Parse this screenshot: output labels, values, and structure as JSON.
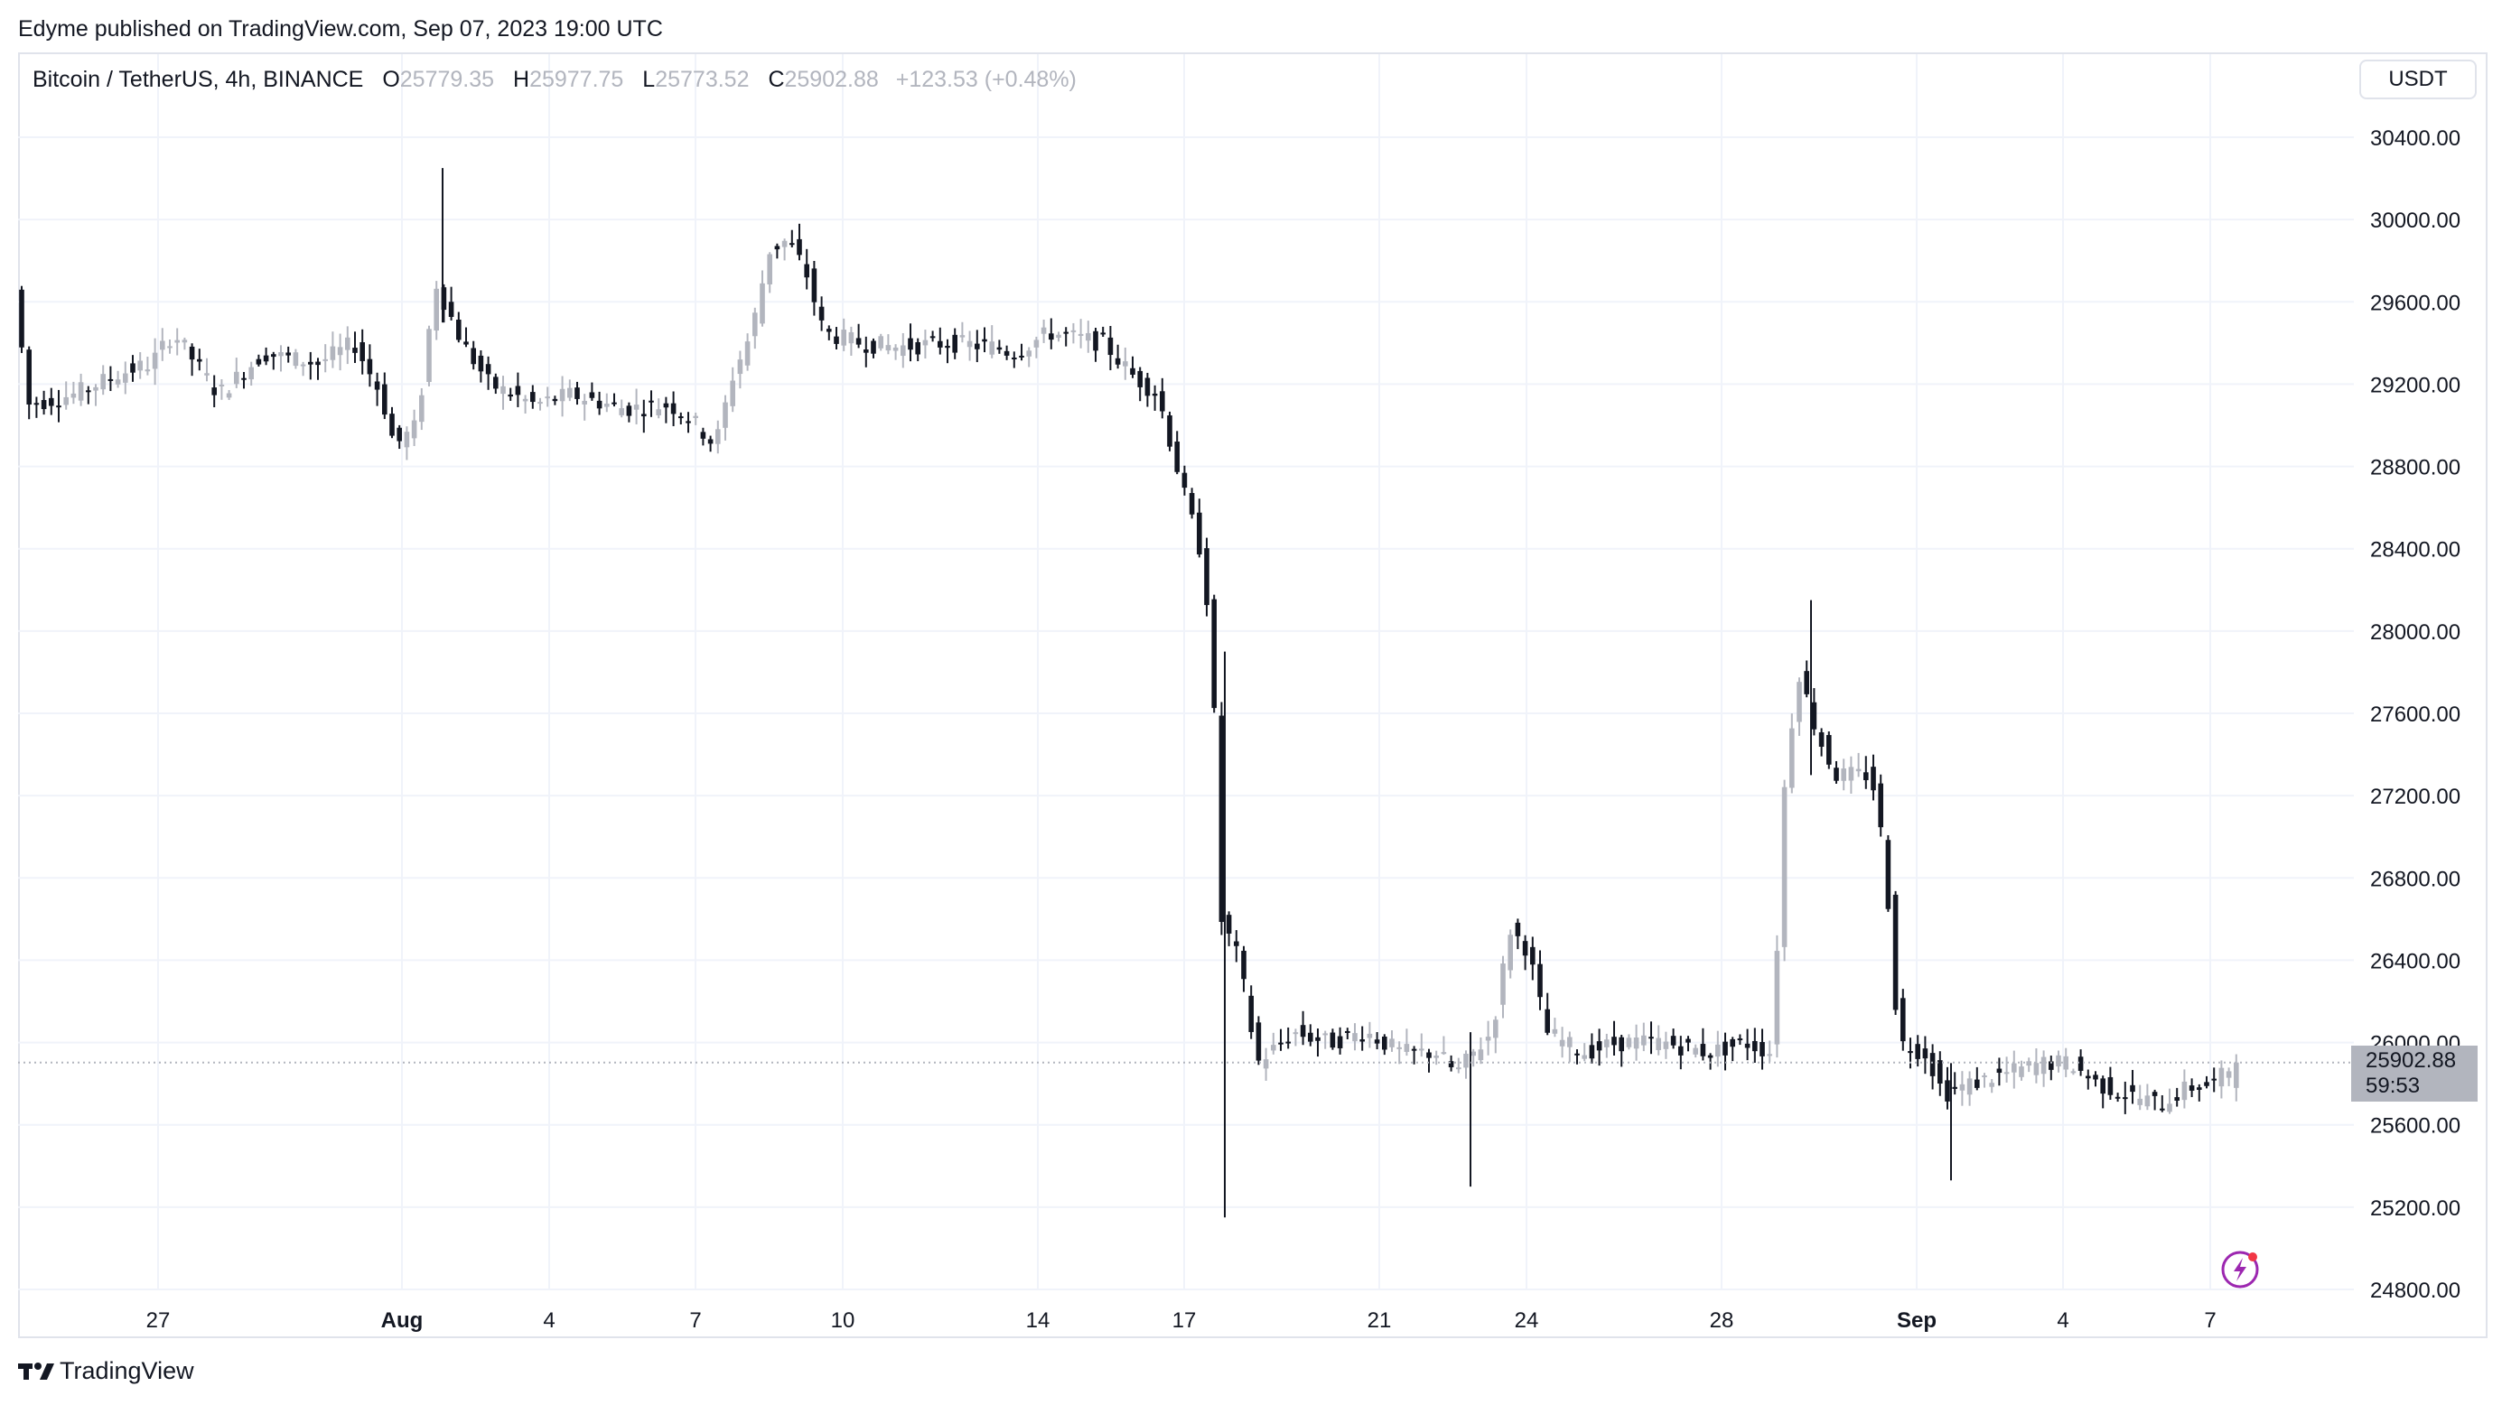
{
  "header": {
    "published": "Edyme published on TradingView.com, Sep 07, 2023 19:00 UTC"
  },
  "legend": {
    "symbol": "Bitcoin / TetherUS, 4h, BINANCE",
    "o_label": "O",
    "o_value": "25779.35",
    "h_label": "H",
    "h_value": "25977.75",
    "l_label": "L",
    "l_value": "25773.52",
    "c_label": "C",
    "c_value": "25902.88",
    "change": "+123.53 (+0.48%)"
  },
  "currency": "USDT",
  "last_price": {
    "price": "25902.88",
    "countdown": "59:53"
  },
  "footer": {
    "brand": "TradingView"
  },
  "colors": {
    "up": "#b2b5be",
    "down": "#131722",
    "grid": "#f0f3fa",
    "accent": "#9c27b0"
  },
  "icons": {
    "footer_logo": "tradingview-logo-icon",
    "alert": "lightning-icon"
  },
  "chart_data": {
    "type": "candlestick",
    "ylim": [
      24800,
      30600
    ],
    "y_ticks": [
      "30400.00",
      "30000.00",
      "29600.00",
      "29200.00",
      "28800.00",
      "28400.00",
      "28000.00",
      "27600.00",
      "27200.00",
      "26800.00",
      "26400.00",
      "26000.00",
      "25600.00",
      "25200.00",
      "24800.00"
    ],
    "x_ticks": [
      "27",
      "Aug",
      "4",
      "7",
      "10",
      "14",
      "17",
      "21",
      "24",
      "28",
      "Sep",
      "4",
      "7"
    ],
    "current_price": 25902.88,
    "ohlc_points": [
      [
        "Jul 25",
        29850,
        29200
      ],
      [
        "Jul 27",
        29150,
        29350
      ],
      [
        "Aug 1",
        28950,
        29700
      ],
      [
        "Aug 2",
        29600,
        29150
      ],
      [
        "Aug 4",
        29300,
        29100
      ],
      [
        "Aug 7",
        29050,
        29200
      ],
      [
        "Aug 8",
        29200,
        29950
      ],
      [
        "Aug 9",
        29900,
        29500
      ],
      [
        "Aug 10",
        29450,
        29450
      ],
      [
        "Aug 14",
        29400,
        29450
      ],
      [
        "Aug 15",
        29400,
        29100
      ],
      [
        "Aug 16",
        29100,
        28800
      ],
      [
        "Aug 17",
        28800,
        26600
      ],
      [
        "Aug 18",
        26500,
        26000
      ],
      [
        "Aug 21",
        26050,
        26050
      ],
      [
        "Aug 22",
        26050,
        25850
      ],
      [
        "Aug 23",
        25900,
        26600
      ],
      [
        "Aug 24",
        26400,
        26050
      ],
      [
        "Aug 28",
        26050,
        25950
      ],
      [
        "Aug 29",
        25950,
        27700
      ],
      [
        "Aug 30",
        27700,
        27300
      ],
      [
        "Aug 31",
        27300,
        25900
      ],
      [
        "Sep 1",
        25900,
        25800
      ],
      [
        "Sep 4",
        25900,
        25850
      ],
      [
        "Sep 6",
        25750,
        25650
      ],
      [
        "Sep 7",
        25780,
        25903
      ]
    ]
  }
}
